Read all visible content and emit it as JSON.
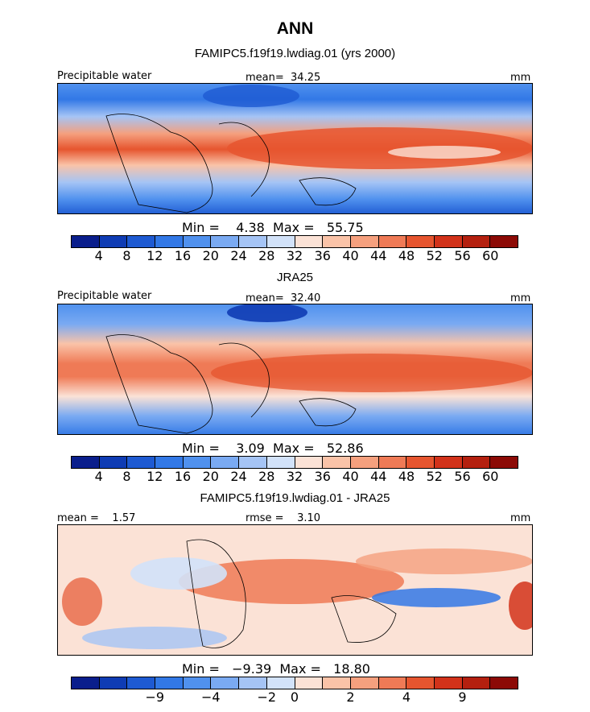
{
  "title": "ANN",
  "panels": [
    {
      "subtitle": "FAMIPC5.f19f19.lwdiag.01 (yrs 2000)",
      "left_label": "Precipitable water",
      "center_label": "mean=  34.25",
      "right_label": "mm",
      "stats": "Min =    4.38  Max =   55.75",
      "colorbar": {
        "ticks": [
          "4",
          "8",
          "12",
          "16",
          "20",
          "24",
          "28",
          "32",
          "36",
          "40",
          "44",
          "48",
          "52",
          "56",
          "60"
        ],
        "colors": [
          "#0a1e8c",
          "#0f3cb4",
          "#1e5ad2",
          "#3278e6",
          "#5091ee",
          "#7aaaf2",
          "#a5c4f5",
          "#d2e2f9",
          "#fbe2d6",
          "#fac3a8",
          "#f5a07e",
          "#ef7a56",
          "#e6552f",
          "#d2321a",
          "#b4200f",
          "#8c0a06"
        ]
      },
      "map_values": {
        "description_field_none": null,
        "mean": 34.25,
        "min": 4.38,
        "max": 55.75
      }
    },
    {
      "subtitle": "JRA25",
      "left_label": "Precipitable water",
      "center_label": "mean=  32.40",
      "right_label": "mm",
      "stats": "Min =    3.09  Max =   52.86",
      "colorbar": {
        "ticks": [
          "4",
          "8",
          "12",
          "16",
          "20",
          "24",
          "28",
          "32",
          "36",
          "40",
          "44",
          "48",
          "52",
          "56",
          "60"
        ],
        "colors": [
          "#0a1e8c",
          "#0f3cb4",
          "#1e5ad2",
          "#3278e6",
          "#5091ee",
          "#7aaaf2",
          "#a5c4f5",
          "#d2e2f9",
          "#fbe2d6",
          "#fac3a8",
          "#f5a07e",
          "#ef7a56",
          "#e6552f",
          "#d2321a",
          "#b4200f",
          "#8c0a06"
        ]
      },
      "map_values": {
        "mean": 32.4,
        "min": 3.09,
        "max": 52.86
      }
    },
    {
      "subtitle": "FAMIPC5.f19f19.lwdiag.01 - JRA25",
      "left_label": "mean =    1.57",
      "center_label": "rmse =    3.10",
      "right_label": "mm",
      "stats": "Min =   −9.39  Max =   18.80",
      "colorbar": {
        "ticks": [
          "−9",
          "−4",
          "−2",
          "0",
          "2",
          "4",
          "9"
        ],
        "colors": [
          "#0a1e8c",
          "#0f3cb4",
          "#1e5ad2",
          "#3278e6",
          "#5091ee",
          "#7aaaf2",
          "#a5c4f5",
          "#d2e2f9",
          "#fbe2d6",
          "#fac3a8",
          "#f5a07e",
          "#ef7a56",
          "#e6552f",
          "#d2321a",
          "#b4200f",
          "#8c0a06"
        ]
      },
      "map_values": {
        "mean": 1.57,
        "rmse": 3.1,
        "min": -9.39,
        "max": 18.8
      }
    }
  ],
  "chart_data": [
    {
      "type": "heatmap",
      "title": "FAMIPC5.f19f19.lwdiag.01 (yrs 2000)",
      "variable": "Precipitable water",
      "units": "mm",
      "mean": 34.25,
      "min": 4.38,
      "max": 55.75,
      "levels": [
        4,
        8,
        12,
        16,
        20,
        24,
        28,
        32,
        36,
        40,
        44,
        48,
        52,
        56,
        60
      ]
    },
    {
      "type": "heatmap",
      "title": "JRA25",
      "variable": "Precipitable water",
      "units": "mm",
      "mean": 32.4,
      "min": 3.09,
      "max": 52.86,
      "levels": [
        4,
        8,
        12,
        16,
        20,
        24,
        28,
        32,
        36,
        40,
        44,
        48,
        52,
        56,
        60
      ]
    },
    {
      "type": "heatmap",
      "title": "FAMIPC5.f19f19.lwdiag.01 - JRA25",
      "units": "mm",
      "mean": 1.57,
      "rmse": 3.1,
      "min": -9.39,
      "max": 18.8,
      "levels": [
        -9,
        -4,
        -2,
        0,
        2,
        4,
        9
      ]
    }
  ]
}
